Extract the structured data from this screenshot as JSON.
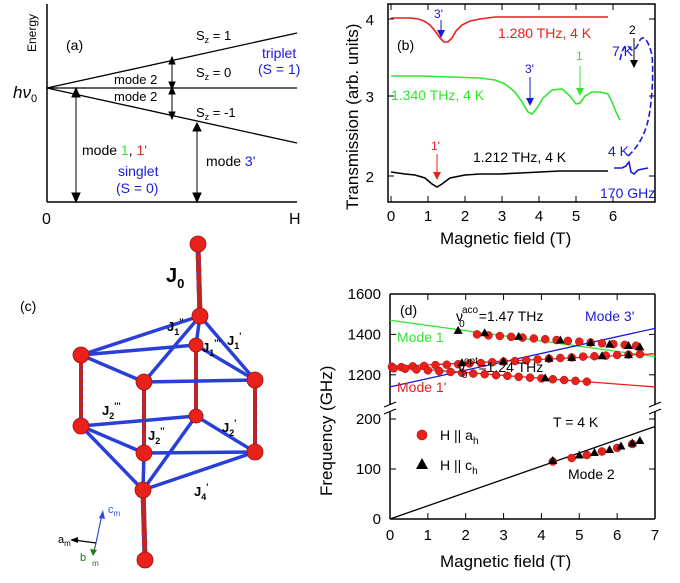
{
  "colors": {
    "black": "#000000",
    "red": "#e8211b",
    "green": "#2ee82e",
    "blue": "#1a1adb",
    "bond_red": "#c8221a",
    "bond_blue": "#2a3fd8"
  },
  "panel_a": {
    "label": "(a)",
    "energy_label": "Energy",
    "origin_label": "0",
    "x_axis_label": "H",
    "hv_label": "hν",
    "hv_sub": "0",
    "sz_plus": "S",
    "sz_plus_sub": "z",
    "sz_plus_val": " = 1",
    "sz_zero_val": " = 0",
    "sz_minus_val": " = -1",
    "triplet_line1": "triplet",
    "triplet_line2": "(S = 1)",
    "mode2_upper": "mode 2",
    "mode2_lower": "mode 2",
    "mode1_prefix": "mode ",
    "mode1_num": "1",
    "mode1_sep": ", ",
    "mode1_prime": "1'",
    "singlet_line1": "singlet",
    "singlet_line2": "(S = 0)",
    "mode3_prefix": "mode ",
    "mode3_num": "3'"
  },
  "panel_b": {
    "label": "(b)",
    "ylabel": "Transmission (arb. units)",
    "xlabel": "Magnetic field (T)",
    "y_ticks": [
      "2",
      "3",
      "4"
    ],
    "x_ticks": [
      "0",
      "1",
      "2",
      "3",
      "4",
      "5",
      "6"
    ],
    "trace_red_label": "1.280 THz, 4 K",
    "trace_green_label": "1.340 THz, 4 K",
    "trace_black_label": "1.212 THz, 4 K",
    "blue_7k": "7 K",
    "blue_4k": "4 K",
    "blue_freq": "170 GHz",
    "arrow_red_3": "3'",
    "arrow_green_3": "3'",
    "arrow_green_1": "1",
    "arrow_black_1": "1'",
    "arrow_2": "2"
  },
  "panel_c": {
    "label": "(c)",
    "j0": "J",
    "j0_sub": "0",
    "j1pp": "J",
    "j1pp_sub": "1",
    "j1pp_sup": "''",
    "j1ppp": "J",
    "j1ppp_sub": "1",
    "j1ppp_sup": "'''",
    "j1p": "J",
    "j1p_sub": "1",
    "j1p_sup": "'",
    "j2ppp": "J",
    "j2ppp_sub": "2",
    "j2ppp_sup": "'''",
    "j2pp": "J",
    "j2pp_sub": "2",
    "j2pp_sup": "''",
    "j2p": "J",
    "j2p_sub": "2",
    "j2p_sup": "'",
    "j4p": "J",
    "j4p_sub": "4",
    "j4p_sup": "'",
    "axis_c": "c",
    "axis_c_sub": "m",
    "axis_a": "a",
    "axis_a_sub": "m",
    "axis_b": "b",
    "axis_b_sub": "m"
  },
  "panel_d": {
    "label": "(d)",
    "ylabel": "Frequency (GHz)",
    "xlabel": "Magnetic field (T)",
    "y_ticks_upper": [
      "1200",
      "1400",
      "1600"
    ],
    "y_ticks_lower": [
      "0",
      "100",
      "200"
    ],
    "x_ticks": [
      "0",
      "1",
      "2",
      "3",
      "4",
      "5",
      "6",
      "7"
    ],
    "aco_label": "ν",
    "aco_sup": "aco",
    "aco_sub": "0",
    "aco_value": "=1.47 THz",
    "opt_label": "ν",
    "opt_sup": "opt",
    "opt_sub": "0",
    "opt_value": "=1.24 THz",
    "mode1": "Mode 1",
    "mode1p": "Mode 1'",
    "mode3p": "Mode 3'",
    "mode2": "Mode 2",
    "temp": "T = 4 K",
    "legend_circle": "H || a",
    "legend_circle_sub": "h",
    "legend_triangle": "H || c",
    "legend_triangle_sub": "h"
  },
  "chart_data": {
    "type": "scatter",
    "xlim": [
      0,
      7
    ],
    "ylim_upper": [
      1100,
      1600
    ],
    "ylim_lower": [
      0,
      200
    ],
    "series": [
      {
        "name": "H || a_h",
        "marker": "circle",
        "color": "#e8211b",
        "points": [
          [
            0.05,
            1240
          ],
          [
            0.3,
            1238
          ],
          [
            0.6,
            1242
          ],
          [
            0.9,
            1244
          ],
          [
            1.2,
            1248
          ],
          [
            1.5,
            1250
          ],
          [
            1.8,
            1252
          ],
          [
            2.1,
            1256
          ],
          [
            2.4,
            1258
          ],
          [
            2.7,
            1262
          ],
          [
            3.0,
            1265
          ],
          [
            3.3,
            1268
          ],
          [
            3.6,
            1272
          ],
          [
            3.9,
            1276
          ],
          [
            4.2,
            1280
          ],
          [
            4.5,
            1283
          ],
          [
            4.8,
            1286
          ],
          [
            5.1,
            1290
          ],
          [
            5.4,
            1292
          ],
          [
            5.7,
            1295
          ],
          [
            6.0,
            1298
          ],
          [
            6.3,
            1300
          ],
          [
            6.6,
            1302
          ],
          [
            0.1,
            1232
          ],
          [
            0.4,
            1230
          ],
          [
            0.7,
            1226
          ],
          [
            1.0,
            1222
          ],
          [
            1.3,
            1218
          ],
          [
            1.6,
            1214
          ],
          [
            1.9,
            1210
          ],
          [
            2.2,
            1206
          ],
          [
            2.5,
            1203
          ],
          [
            2.8,
            1198
          ],
          [
            3.1,
            1195
          ],
          [
            3.4,
            1190
          ],
          [
            3.7,
            1186
          ],
          [
            4.0,
            1182
          ],
          [
            4.3,
            1178
          ],
          [
            4.6,
            1174
          ],
          [
            4.9,
            1170
          ],
          [
            5.2,
            1166
          ],
          [
            2.3,
            1400
          ],
          [
            2.6,
            1395
          ],
          [
            2.9,
            1392
          ],
          [
            3.2,
            1388
          ],
          [
            3.5,
            1384
          ],
          [
            3.8,
            1380
          ],
          [
            4.1,
            1376
          ],
          [
            4.4,
            1372
          ],
          [
            4.7,
            1368
          ],
          [
            5.0,
            1364
          ],
          [
            5.3,
            1360
          ],
          [
            5.6,
            1356
          ],
          [
            5.9,
            1352
          ],
          [
            6.2,
            1348
          ],
          [
            6.5,
            1344
          ],
          [
            4.3,
            115
          ],
          [
            4.8,
            122
          ],
          [
            5.2,
            128
          ],
          [
            5.6,
            135
          ],
          [
            6.0,
            142
          ],
          [
            6.4,
            150
          ]
        ]
      },
      {
        "name": "H || c_h",
        "marker": "triangle",
        "color": "#000000",
        "points": [
          [
            1.8,
            1420
          ],
          [
            2.5,
            1408
          ],
          [
            3.4,
            1390
          ],
          [
            4.5,
            1372
          ],
          [
            5.3,
            1360
          ],
          [
            5.8,
            1352
          ],
          [
            6.3,
            1345
          ],
          [
            6.6,
            1338
          ],
          [
            1.9,
            1260
          ],
          [
            3.0,
            1268
          ],
          [
            4.2,
            1282
          ],
          [
            4.8,
            1286
          ],
          [
            5.6,
            1294
          ],
          [
            6.3,
            1300
          ],
          [
            4.1,
            1185
          ],
          [
            4.3,
            117
          ],
          [
            5.0,
            128
          ],
          [
            5.4,
            133
          ],
          [
            5.8,
            139
          ],
          [
            6.1,
            146
          ],
          [
            6.4,
            152
          ],
          [
            6.6,
            157
          ]
        ]
      }
    ],
    "lines": [
      {
        "name": "Mode 1",
        "color": "#2ee82e",
        "x": [
          0,
          7
        ],
        "y": [
          1470,
          1290
        ]
      },
      {
        "name": "Mode 3'",
        "color": "#1a1adb",
        "x": [
          0,
          7
        ],
        "y": [
          1140,
          1430
        ]
      },
      {
        "name": "Mode 1'",
        "color": "#e8211b",
        "x": [
          0,
          7
        ],
        "y": [
          1240,
          1140
        ]
      },
      {
        "name": "opt",
        "color": "#e8211b",
        "x": [
          0,
          7
        ],
        "y": [
          1240,
          1304
        ]
      },
      {
        "name": "Mode 2",
        "color": "#000000",
        "x": [
          0,
          7
        ],
        "y": [
          0,
          185
        ]
      }
    ]
  }
}
